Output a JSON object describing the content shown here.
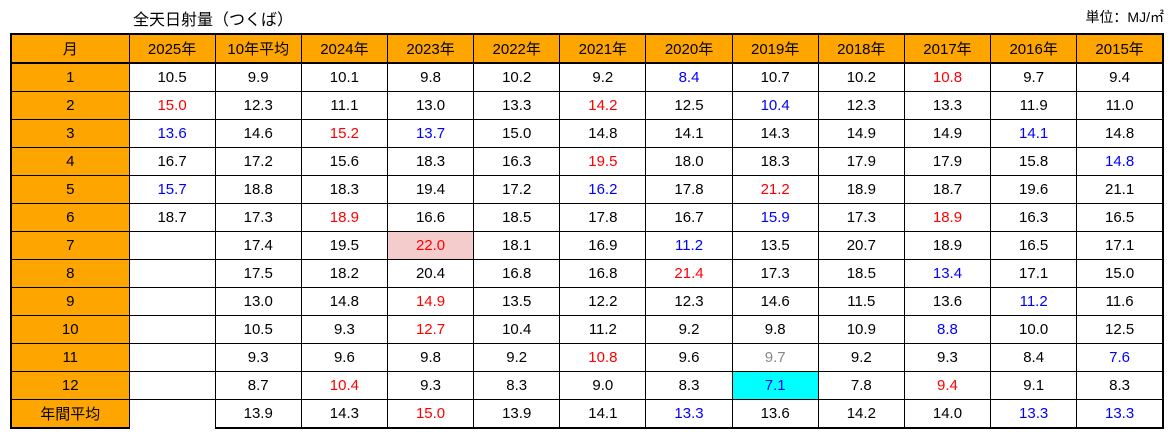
{
  "title": "全天日射量（つくば）",
  "unit_label": "単位：MJ/㎡",
  "colors": {
    "header_fill": "#FFA500",
    "high_value_text": "#FF0000",
    "low_value_text": "#0000FF",
    "muted_value_text": "#888888",
    "record_high_fill": "#F4CCCC",
    "record_low_fill": "#00FFFF",
    "border": "#000000"
  },
  "table": {
    "columns": [
      "月",
      "2025年",
      "10年平均",
      "2024年",
      "2023年",
      "2022年",
      "2021年",
      "2020年",
      "2019年",
      "2018年",
      "2017年",
      "2016年",
      "2015年"
    ],
    "style_legend": {
      "": "black-regular",
      "r": "red-bold",
      "b": "blue-bold",
      "bn": "blue-regular",
      "g": "gray-regular",
      "rp": "red-bold-pink-background",
      "bc": "blue-bold-cyan-background",
      "nb": "empty-no-bottom-border"
    },
    "rows": [
      {
        "label": "1",
        "cells": [
          [
            "10.5",
            ""
          ],
          [
            "9.9",
            ""
          ],
          [
            "10.1",
            ""
          ],
          [
            "9.8",
            ""
          ],
          [
            "10.2",
            ""
          ],
          [
            "9.2",
            ""
          ],
          [
            "8.4",
            "b"
          ],
          [
            "10.7",
            ""
          ],
          [
            "10.2",
            ""
          ],
          [
            "10.8",
            "r"
          ],
          [
            "9.7",
            ""
          ],
          [
            "9.4",
            ""
          ]
        ]
      },
      {
        "label": "2",
        "cells": [
          [
            "15.0",
            "r"
          ],
          [
            "12.3",
            ""
          ],
          [
            "11.1",
            ""
          ],
          [
            "13.0",
            ""
          ],
          [
            "13.3",
            ""
          ],
          [
            "14.2",
            "r"
          ],
          [
            "12.5",
            ""
          ],
          [
            "10.4",
            "b"
          ],
          [
            "12.3",
            ""
          ],
          [
            "13.3",
            ""
          ],
          [
            "11.9",
            ""
          ],
          [
            "11.0",
            ""
          ]
        ]
      },
      {
        "label": "3",
        "cells": [
          [
            "13.6",
            "b"
          ],
          [
            "14.6",
            ""
          ],
          [
            "15.2",
            "r"
          ],
          [
            "13.7",
            "b"
          ],
          [
            "15.0",
            ""
          ],
          [
            "14.8",
            ""
          ],
          [
            "14.1",
            ""
          ],
          [
            "14.3",
            ""
          ],
          [
            "14.9",
            ""
          ],
          [
            "14.9",
            ""
          ],
          [
            "14.1",
            "bn"
          ],
          [
            "14.8",
            ""
          ]
        ]
      },
      {
        "label": "4",
        "cells": [
          [
            "16.7",
            ""
          ],
          [
            "17.2",
            ""
          ],
          [
            "15.6",
            ""
          ],
          [
            "18.3",
            ""
          ],
          [
            "16.3",
            ""
          ],
          [
            "19.5",
            "r"
          ],
          [
            "18.0",
            ""
          ],
          [
            "18.3",
            ""
          ],
          [
            "17.9",
            ""
          ],
          [
            "17.9",
            ""
          ],
          [
            "15.8",
            ""
          ],
          [
            "14.8",
            "b"
          ]
        ]
      },
      {
        "label": "5",
        "cells": [
          [
            "15.7",
            "b"
          ],
          [
            "18.8",
            ""
          ],
          [
            "18.3",
            ""
          ],
          [
            "19.4",
            ""
          ],
          [
            "17.2",
            ""
          ],
          [
            "16.2",
            "b"
          ],
          [
            "17.8",
            ""
          ],
          [
            "21.2",
            "r"
          ],
          [
            "18.9",
            ""
          ],
          [
            "18.7",
            ""
          ],
          [
            "19.6",
            ""
          ],
          [
            "21.1",
            ""
          ]
        ]
      },
      {
        "label": "6",
        "cells": [
          [
            "18.7",
            ""
          ],
          [
            "17.3",
            ""
          ],
          [
            "18.9",
            "r"
          ],
          [
            "16.6",
            ""
          ],
          [
            "18.5",
            ""
          ],
          [
            "17.8",
            ""
          ],
          [
            "16.7",
            ""
          ],
          [
            "15.9",
            "b"
          ],
          [
            "17.3",
            ""
          ],
          [
            "18.9",
            "r"
          ],
          [
            "16.3",
            ""
          ],
          [
            "16.5",
            ""
          ]
        ]
      },
      {
        "label": "7",
        "cells": [
          [
            "",
            ""
          ],
          [
            "17.4",
            ""
          ],
          [
            "19.5",
            ""
          ],
          [
            "22.0",
            "rp"
          ],
          [
            "18.1",
            ""
          ],
          [
            "16.9",
            ""
          ],
          [
            "11.2",
            "b"
          ],
          [
            "13.5",
            ""
          ],
          [
            "20.7",
            ""
          ],
          [
            "18.9",
            ""
          ],
          [
            "16.5",
            ""
          ],
          [
            "17.1",
            ""
          ]
        ]
      },
      {
        "label": "8",
        "cells": [
          [
            "",
            ""
          ],
          [
            "17.5",
            ""
          ],
          [
            "18.2",
            ""
          ],
          [
            "20.4",
            ""
          ],
          [
            "16.8",
            ""
          ],
          [
            "16.8",
            ""
          ],
          [
            "21.4",
            "r"
          ],
          [
            "17.3",
            ""
          ],
          [
            "18.5",
            ""
          ],
          [
            "13.4",
            "b"
          ],
          [
            "17.1",
            ""
          ],
          [
            "15.0",
            ""
          ]
        ]
      },
      {
        "label": "9",
        "cells": [
          [
            "",
            ""
          ],
          [
            "13.0",
            ""
          ],
          [
            "14.8",
            ""
          ],
          [
            "14.9",
            "r"
          ],
          [
            "13.5",
            ""
          ],
          [
            "12.2",
            ""
          ],
          [
            "12.3",
            ""
          ],
          [
            "14.6",
            ""
          ],
          [
            "11.5",
            ""
          ],
          [
            "13.6",
            ""
          ],
          [
            "11.2",
            "b"
          ],
          [
            "11.6",
            ""
          ]
        ]
      },
      {
        "label": "10",
        "cells": [
          [
            "",
            ""
          ],
          [
            "10.5",
            ""
          ],
          [
            "9.3",
            ""
          ],
          [
            "12.7",
            "r"
          ],
          [
            "10.4",
            ""
          ],
          [
            "11.2",
            ""
          ],
          [
            "9.2",
            ""
          ],
          [
            "9.8",
            ""
          ],
          [
            "10.9",
            ""
          ],
          [
            "8.8",
            "b"
          ],
          [
            "10.0",
            ""
          ],
          [
            "12.5",
            ""
          ]
        ]
      },
      {
        "label": "11",
        "cells": [
          [
            "",
            ""
          ],
          [
            "9.3",
            ""
          ],
          [
            "9.6",
            ""
          ],
          [
            "9.8",
            ""
          ],
          [
            "9.2",
            ""
          ],
          [
            "10.8",
            "r"
          ],
          [
            "9.6",
            ""
          ],
          [
            "9.7",
            "g"
          ],
          [
            "9.2",
            ""
          ],
          [
            "9.3",
            ""
          ],
          [
            "8.4",
            ""
          ],
          [
            "7.6",
            "b"
          ]
        ]
      },
      {
        "label": "12",
        "cells": [
          [
            "",
            ""
          ],
          [
            "8.7",
            ""
          ],
          [
            "10.4",
            "r"
          ],
          [
            "9.3",
            ""
          ],
          [
            "8.3",
            ""
          ],
          [
            "9.0",
            ""
          ],
          [
            "8.3",
            ""
          ],
          [
            "7.1",
            "bc"
          ],
          [
            "7.8",
            ""
          ],
          [
            "9.4",
            "r"
          ],
          [
            "9.1",
            ""
          ],
          [
            "8.3",
            ""
          ]
        ]
      },
      {
        "label": "年間平均",
        "cells": [
          [
            "",
            "nb"
          ],
          [
            "13.9",
            ""
          ],
          [
            "14.3",
            ""
          ],
          [
            "15.0",
            "r"
          ],
          [
            "13.9",
            ""
          ],
          [
            "14.1",
            ""
          ],
          [
            "13.3",
            "b"
          ],
          [
            "13.6",
            ""
          ],
          [
            "14.2",
            ""
          ],
          [
            "14.0",
            ""
          ],
          [
            "13.3",
            "b"
          ],
          [
            "13.3",
            "b"
          ]
        ]
      }
    ]
  }
}
